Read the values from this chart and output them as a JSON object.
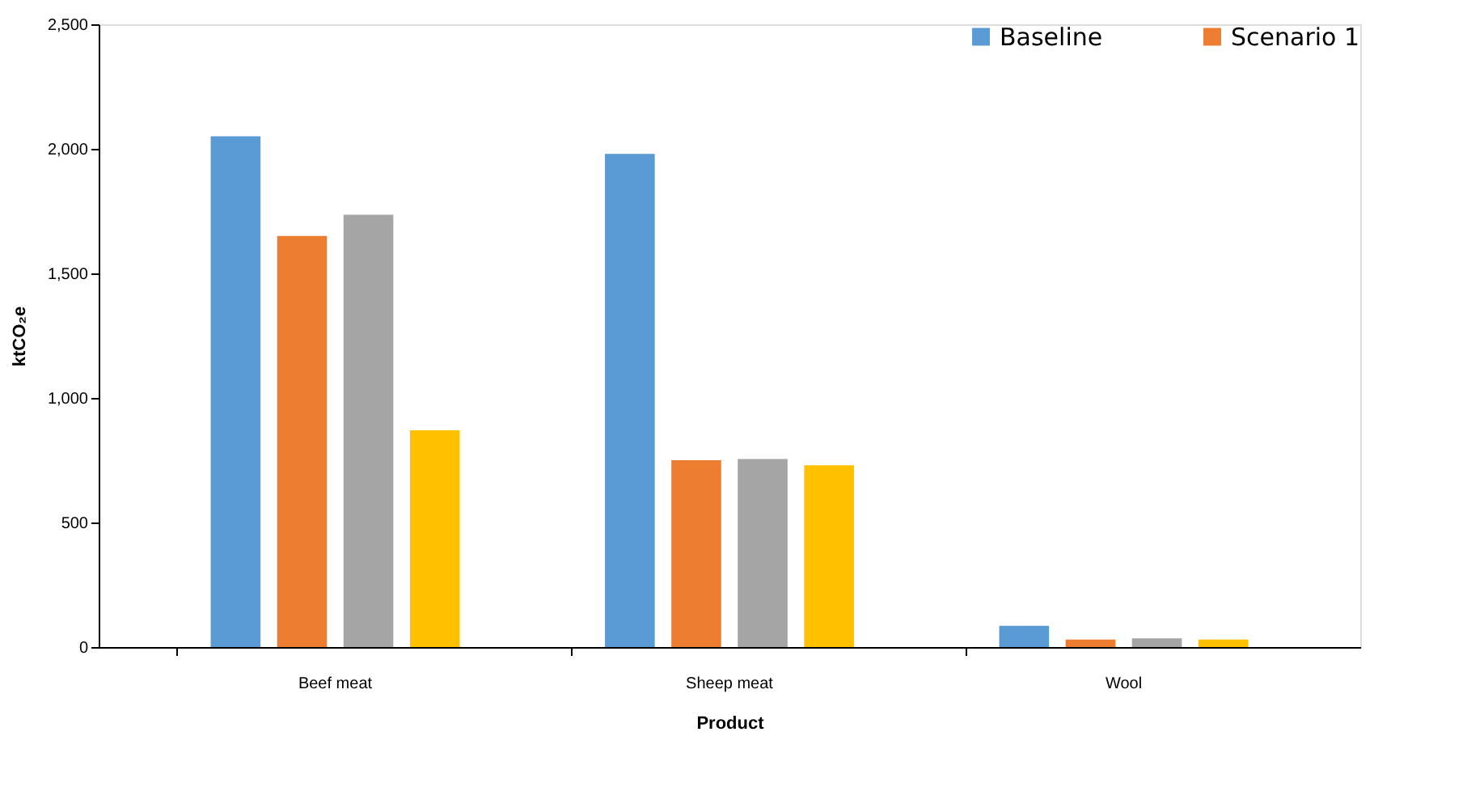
{
  "chart_data": {
    "type": "bar",
    "xlabel": "Product",
    "ylabel": "ktCO₂e",
    "categories": [
      "Beef meat",
      "Sheep meat",
      "Wool"
    ],
    "series": [
      {
        "name": "Baseline",
        "color": "#5b9bd5",
        "values": [
          2050,
          1980,
          85
        ]
      },
      {
        "name": "Scenario 1",
        "color": "#ed7d31",
        "values": [
          1650,
          750,
          30
        ]
      },
      {
        "color": "#a5a5a5",
        "values": [
          1735,
          755,
          35
        ]
      },
      {
        "color": "#ffc000",
        "values": [
          870,
          730,
          30
        ]
      }
    ],
    "ylim": [
      0,
      2500
    ],
    "yticks": [
      {
        "value": 0,
        "label": "0"
      },
      {
        "value": 500,
        "label": "500"
      },
      {
        "value": 1000,
        "label": "1,000"
      },
      {
        "value": 1500,
        "label": "1,500"
      },
      {
        "value": 2000,
        "label": "2,000"
      },
      {
        "value": 2500,
        "label": "2,500"
      }
    ],
    "grid": false,
    "legend": "top right"
  }
}
